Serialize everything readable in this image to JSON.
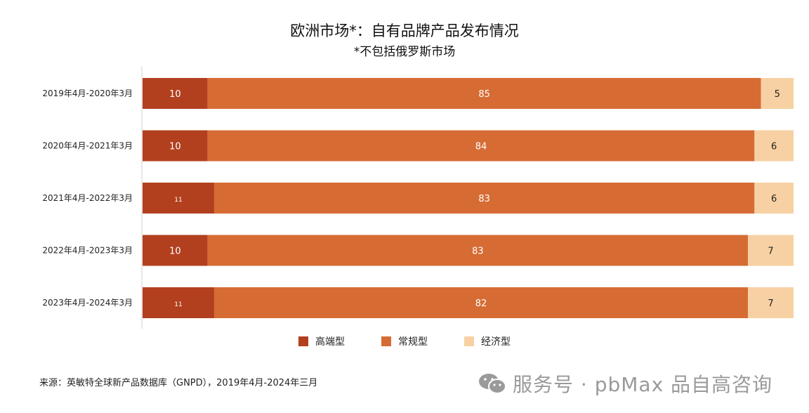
{
  "chart_data": {
    "type": "bar",
    "orientation": "horizontal",
    "stacked": true,
    "title": "欧洲市场*：自有品牌产品发布情况",
    "subtitle": "*不包括俄罗斯市场",
    "categories": [
      "2019年4月-2020年3月",
      "2020年4月-2021年3月",
      "2021年4月-2022年3月",
      "2022年4月-2023年3月",
      "2023年4月-2024年3月"
    ],
    "series": [
      {
        "name": "高端型",
        "values": [
          10,
          10,
          11,
          10,
          11
        ],
        "color": "#B2401F"
      },
      {
        "name": "常规型",
        "values": [
          85,
          84,
          83,
          83,
          82
        ],
        "color": "#D66C34"
      },
      {
        "name": "经济型",
        "values": [
          5,
          6,
          6,
          7,
          7
        ],
        "color": "#F7D1A3"
      }
    ],
    "xlim": [
      0,
      100
    ],
    "grid": false,
    "legend_position": "bottom"
  },
  "footer": {
    "source": "来源：英敏特全球新产品数据库（GNPD），2019年4月-2024年三月",
    "watermark": "服务号 · pbMax 品自高咨询"
  },
  "icons": {
    "watermark_icon": "wechat-icon"
  }
}
